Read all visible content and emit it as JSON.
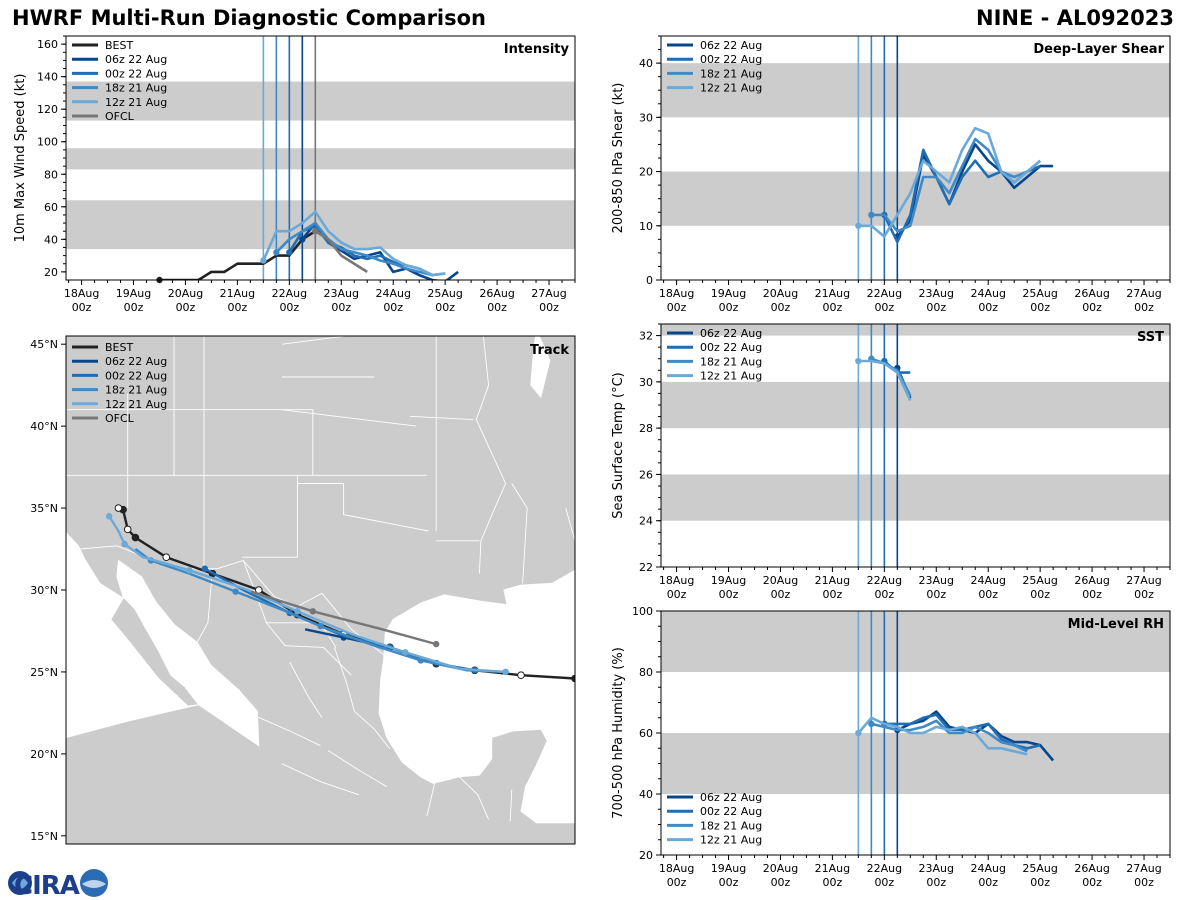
{
  "header": {
    "title": "HWRF Multi-Run Diagnostic Comparison",
    "storm": "NINE - AL092023"
  },
  "logo": {
    "text": "CIRA"
  },
  "colors": {
    "best": "#222222",
    "ofcl": "#777777",
    "r06z22": "#08468c",
    "r00z22": "#1f6db4",
    "r18z21": "#3f8ac6",
    "r12z21": "#6aa9d8",
    "shade": "#cccccc",
    "land": "#cccccc",
    "border": "#ffffff"
  },
  "time_axis": {
    "day_labels": [
      "18Aug",
      "19Aug",
      "20Aug",
      "21Aug",
      "22Aug",
      "23Aug",
      "24Aug",
      "25Aug",
      "26Aug",
      "27Aug"
    ],
    "hour_label": "00z"
  },
  "chart_data": [
    {
      "id": "intensity",
      "type": "line",
      "title": "Intensity",
      "ylabel": "10m Max Wind Speed (kt)",
      "xunit": "days since 18Aug 00z",
      "xlim": [
        -0.3,
        9.5
      ],
      "ylim": [
        15,
        165
      ],
      "yticks": [
        20,
        40,
        60,
        80,
        100,
        120,
        140,
        160
      ],
      "bands": [
        [
          34,
          64
        ],
        [
          83,
          96
        ],
        [
          113,
          137
        ]
      ],
      "init_lines": [
        {
          "x": 3.5,
          "color": "r12z21"
        },
        {
          "x": 3.75,
          "color": "r18z21"
        },
        {
          "x": 4.0,
          "color": "r00z22"
        },
        {
          "x": 4.25,
          "color": "r06z22"
        },
        {
          "x": 4.5,
          "color": "ofcl"
        }
      ],
      "legend": [
        "BEST",
        "06z 22 Aug",
        "00z 22 Aug",
        "18z 21 Aug",
        "12z 21 Aug",
        "OFCL"
      ],
      "series": [
        {
          "name": "BEST",
          "color": "best",
          "x": [
            1.5,
            1.75,
            2.0,
            2.25,
            2.5,
            2.75,
            3.0,
            3.25,
            3.5,
            3.75,
            4.0,
            4.25,
            4.5
          ],
          "y": [
            15,
            15,
            15,
            15,
            20,
            20,
            25,
            25,
            25,
            30,
            30,
            40,
            45
          ]
        },
        {
          "name": "06z 22 Aug",
          "color": "r06z22",
          "x": [
            4.25,
            4.5,
            4.75,
            5.0,
            5.25,
            5.5,
            5.75,
            6.0,
            6.25,
            6.5,
            6.75,
            7.0,
            7.25
          ],
          "y": [
            40,
            50,
            38,
            33,
            28,
            30,
            32,
            20,
            22,
            18,
            15,
            14,
            20
          ]
        },
        {
          "name": "00z 22 Aug",
          "color": "r00z22",
          "x": [
            4.0,
            4.25,
            4.5,
            4.75,
            5.0,
            5.25,
            5.5,
            5.75,
            6.0,
            6.25,
            6.5,
            6.75,
            7.0
          ],
          "y": [
            32,
            45,
            48,
            38,
            35,
            30,
            28,
            30,
            26,
            24,
            22,
            18,
            19
          ]
        },
        {
          "name": "18z 21 Aug",
          "color": "r18z21",
          "x": [
            3.75,
            4.0,
            4.25,
            4.5,
            4.75,
            5.0,
            5.25,
            5.5,
            5.75,
            6.0,
            6.25,
            6.5,
            6.75
          ],
          "y": [
            32,
            40,
            45,
            50,
            40,
            34,
            32,
            30,
            27,
            25,
            22,
            20,
            18
          ]
        },
        {
          "name": "12z 21 Aug",
          "color": "r12z21",
          "x": [
            3.5,
            3.75,
            4.0,
            4.25,
            4.5,
            4.75,
            5.0,
            5.25,
            5.5,
            5.75,
            6.0,
            6.25,
            6.5,
            6.75,
            7.0
          ],
          "y": [
            27,
            45,
            45,
            50,
            57,
            45,
            38,
            34,
            34,
            35,
            28,
            24,
            22,
            18,
            19
          ]
        },
        {
          "name": "OFCL",
          "color": "ofcl",
          "x": [
            4.5,
            4.75,
            5.0,
            5.5
          ],
          "y": [
            45,
            40,
            30,
            20
          ]
        }
      ]
    },
    {
      "id": "shear",
      "type": "line",
      "title": "Deep-Layer Shear",
      "ylabel": "200-850 hPa Shear (kt)",
      "xunit": "days since 18Aug 00z",
      "xlim": [
        -0.3,
        9.5
      ],
      "ylim": [
        0,
        45
      ],
      "yticks": [
        0,
        10,
        20,
        30,
        40
      ],
      "bands": [
        [
          10,
          20
        ],
        [
          30,
          40
        ]
      ],
      "init_lines": [
        {
          "x": 3.5,
          "color": "r12z21"
        },
        {
          "x": 3.75,
          "color": "r18z21"
        },
        {
          "x": 4.0,
          "color": "r00z22"
        },
        {
          "x": 4.25,
          "color": "r06z22"
        }
      ],
      "legend": [
        "06z 22 Aug",
        "00z 22 Aug",
        "18z 21 Aug",
        "12z 21 Aug"
      ],
      "series": [
        {
          "name": "06z 22 Aug",
          "color": "r06z22",
          "x": [
            4.25,
            4.5,
            4.75,
            5.0,
            5.25,
            5.5,
            5.75,
            6.0,
            6.25,
            6.5,
            6.75,
            7.0,
            7.25
          ],
          "y": [
            8,
            11,
            23,
            19,
            14,
            20,
            25,
            22,
            20,
            17,
            19,
            21,
            21
          ]
        },
        {
          "name": "00z 22 Aug",
          "color": "r00z22",
          "x": [
            4.0,
            4.25,
            4.5,
            4.75,
            5.0,
            5.25,
            5.5,
            5.75,
            6.0,
            6.25,
            6.5,
            6.75,
            7.0
          ],
          "y": [
            12,
            7,
            12,
            24,
            19,
            14,
            19,
            22,
            19,
            20,
            18,
            20,
            21
          ]
        },
        {
          "name": "18z 21 Aug",
          "color": "r18z21",
          "x": [
            3.75,
            4.0,
            4.25,
            4.5,
            4.75,
            5.0,
            5.25,
            5.5,
            5.75,
            6.0,
            6.25,
            6.5,
            6.75,
            7.0
          ],
          "y": [
            12,
            12,
            9,
            10,
            19,
            19,
            16,
            21,
            26,
            24,
            20,
            19,
            20,
            22
          ]
        },
        {
          "name": "12z 21 Aug",
          "color": "r12z21",
          "x": [
            3.5,
            3.75,
            4.0,
            4.25,
            4.5,
            4.75,
            5.0,
            5.25,
            5.5,
            5.75,
            6.0,
            6.25,
            6.5,
            6.75,
            7.0
          ],
          "y": [
            10,
            10,
            8,
            12,
            16,
            22,
            20,
            18,
            24,
            28,
            27,
            20,
            18,
            20,
            22
          ]
        }
      ]
    },
    {
      "id": "sst",
      "type": "line",
      "title": "SST",
      "ylabel": "Sea Surface Temp (°C)",
      "xunit": "days since 18Aug 00z",
      "xlim": [
        -0.3,
        9.5
      ],
      "ylim": [
        22,
        32.5
      ],
      "yticks": [
        22,
        24,
        26,
        28,
        30,
        32
      ],
      "bands": [
        [
          24,
          26
        ],
        [
          28,
          30
        ],
        [
          32,
          32.5
        ]
      ],
      "init_lines": [
        {
          "x": 3.5,
          "color": "r12z21"
        },
        {
          "x": 3.75,
          "color": "r18z21"
        },
        {
          "x": 4.0,
          "color": "r00z22"
        },
        {
          "x": 4.25,
          "color": "r06z22"
        }
      ],
      "legend": [
        "06z 22 Aug",
        "00z 22 Aug",
        "18z 21 Aug",
        "12z 21 Aug"
      ],
      "series": [
        {
          "name": "06z 22 Aug",
          "color": "r06z22",
          "x": [
            4.25,
            4.35,
            4.5
          ],
          "y": [
            30.6,
            30.1,
            29.3
          ]
        },
        {
          "name": "00z 22 Aug",
          "color": "r00z22",
          "x": [
            4.0,
            4.25,
            4.5
          ],
          "y": [
            30.9,
            30.4,
            30.4
          ]
        },
        {
          "name": "18z 21 Aug",
          "color": "r18z21",
          "x": [
            3.75,
            4.0,
            4.25,
            4.5
          ],
          "y": [
            31.0,
            30.8,
            30.5,
            29.4
          ]
        },
        {
          "name": "12z 21 Aug",
          "color": "r12z21",
          "x": [
            3.5,
            3.75,
            4.0,
            4.25,
            4.5
          ],
          "y": [
            30.9,
            30.9,
            30.8,
            30.4,
            29.2
          ]
        }
      ]
    },
    {
      "id": "rh",
      "type": "line",
      "title": "Mid-Level RH",
      "ylabel": "700-500 hPa Humidity (%)",
      "xunit": "days since 18Aug 00z",
      "xlim": [
        -0.3,
        9.5
      ],
      "ylim": [
        20,
        100
      ],
      "yticks": [
        20,
        40,
        60,
        80,
        100
      ],
      "bands": [
        [
          40,
          60
        ],
        [
          80,
          100
        ]
      ],
      "init_lines": [
        {
          "x": 3.5,
          "color": "r12z21"
        },
        {
          "x": 3.75,
          "color": "r18z21"
        },
        {
          "x": 4.0,
          "color": "r00z22"
        },
        {
          "x": 4.25,
          "color": "r06z22"
        }
      ],
      "legend": [
        "06z 22 Aug",
        "00z 22 Aug",
        "18z 21 Aug",
        "12z 21 Aug"
      ],
      "series": [
        {
          "name": "06z 22 Aug",
          "color": "r06z22",
          "x": [
            4.25,
            4.5,
            4.75,
            5.0,
            5.25,
            5.5,
            5.75,
            6.0,
            6.25,
            6.5,
            6.75,
            7.0,
            7.25
          ],
          "y": [
            61,
            63,
            64,
            67,
            62,
            61,
            60,
            63,
            59,
            57,
            57,
            56,
            51
          ]
        },
        {
          "name": "00z 22 Aug",
          "color": "r00z22",
          "x": [
            4.0,
            4.25,
            4.5,
            4.75,
            5.0,
            5.25,
            5.5,
            5.75,
            6.0,
            6.25,
            6.5,
            6.75,
            7.0
          ],
          "y": [
            63,
            63,
            63,
            65,
            66,
            61,
            61,
            62,
            63,
            58,
            56,
            55,
            56
          ]
        },
        {
          "name": "18z 21 Aug",
          "color": "r18z21",
          "x": [
            3.75,
            4.0,
            4.25,
            4.5,
            4.75,
            5.0,
            5.25,
            5.5,
            5.75,
            6.0,
            6.25,
            6.5,
            6.75
          ],
          "y": [
            63,
            62,
            61,
            61,
            62,
            64,
            60,
            60,
            62,
            60,
            57,
            56,
            54
          ]
        },
        {
          "name": "12z 21 Aug",
          "color": "r12z21",
          "x": [
            3.5,
            3.75,
            4.0,
            4.25,
            4.5,
            4.75,
            5.0,
            5.25,
            5.5,
            5.75,
            6.0,
            6.25,
            6.5,
            6.75
          ],
          "y": [
            60,
            65,
            63,
            62,
            60,
            60,
            62,
            61,
            62,
            60,
            55,
            55,
            54,
            53
          ]
        }
      ]
    },
    {
      "id": "track",
      "type": "scatter",
      "title": "Track",
      "xunit": "degrees longitude",
      "xlim": [
        -118,
        -85
      ],
      "ylim": [
        14.5,
        45.5
      ],
      "lat_ticks": [
        "15°N",
        "20°N",
        "25°N",
        "30°N",
        "35°N",
        "40°N",
        "45°N"
      ],
      "lat_values": [
        15,
        20,
        25,
        30,
        35,
        40,
        45
      ],
      "legend": [
        "BEST",
        "06z 22 Aug",
        "00z 22 Aug",
        "18z 21 Aug",
        "12z 21 Aug",
        "OFCL"
      ],
      "series": [
        {
          "name": "BEST",
          "color": "best",
          "lon": [
            -85,
            -88.5,
            -91.5,
            -94,
            -97,
            -100,
            -103,
            -105.5,
            -108.5,
            -111.5,
            -113.5,
            -114,
            -114.3,
            -114.6
          ],
          "lat": [
            24.6,
            24.8,
            25.1,
            25.5,
            26.5,
            27.3,
            28.5,
            30.0,
            31.0,
            32.0,
            33.2,
            33.7,
            34.9,
            35.0
          ]
        },
        {
          "name": "06z 22 Aug",
          "color": "r06z22",
          "lon": [
            -94,
            -97,
            -100,
            -102.5
          ],
          "lat": [
            25.5,
            26.5,
            27.1,
            27.6
          ]
        },
        {
          "name": "00z 22 Aug",
          "color": "r00z22",
          "lon": [
            -91.5,
            -94,
            -97,
            -100,
            -103.5,
            -106.5,
            -109
          ],
          "lat": [
            25.1,
            25.5,
            26.5,
            27.2,
            28.6,
            30.0,
            31.3
          ]
        },
        {
          "name": "18z 21 Aug",
          "color": "r18z21",
          "lon": [
            -89.5,
            -92,
            -95,
            -98,
            -101.5,
            -104,
            -107,
            -110,
            -112.5,
            -113.5
          ],
          "lat": [
            25.0,
            25.1,
            25.7,
            26.6,
            27.8,
            28.8,
            29.9,
            31.0,
            31.8,
            32.5
          ]
        },
        {
          "name": "12z 21 Aug",
          "color": "r12z21",
          "lon": [
            -89.5,
            -92.5,
            -96,
            -99.5,
            -103,
            -106.5,
            -110,
            -113,
            -114.2,
            -114.6,
            -115.2
          ],
          "lat": [
            25.0,
            25.2,
            26.2,
            27.3,
            28.7,
            30.1,
            31.2,
            32.0,
            32.8,
            33.6,
            34.5
          ]
        },
        {
          "name": "OFCL",
          "color": "ofcl",
          "lon": [
            -94,
            -97.5,
            -102,
            -106
          ],
          "lat": [
            26.7,
            27.6,
            28.7,
            29.9
          ]
        }
      ]
    }
  ]
}
